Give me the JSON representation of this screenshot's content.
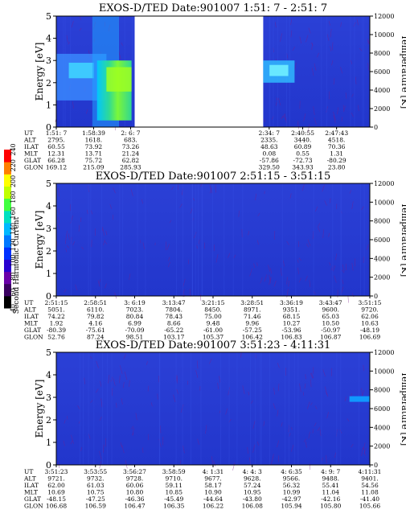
{
  "chart_data": [
    {
      "type": "heatmap",
      "title": "EXOS-D/TED   Date:901007  1:51: 7 - 2:51: 7",
      "ylabel": "Energy [eV]",
      "y2label": "Temperature [K]",
      "ylim": [
        0,
        5
      ],
      "yticks": [
        "0",
        "1",
        "2",
        "3",
        "4",
        "5"
      ],
      "y2lim": [
        0,
        12000
      ],
      "y2ticks": [
        "0",
        "2000",
        "4000",
        "6000",
        "8000",
        "10000",
        "12000"
      ],
      "row_labels": [
        "UT",
        "ALT",
        "ILAT",
        "MLT",
        "GLAT",
        "GLON"
      ],
      "columns": [
        [
          "1:51: 7",
          "2795.",
          "60.55",
          "12.31",
          "66.28",
          "169.12"
        ],
        [
          "1:58:39",
          "1618.",
          "73.92",
          "13.71",
          "75.72",
          "215.09"
        ],
        [
          "2: 6: 7",
          "683.",
          "73.26",
          "21.24",
          "62.82",
          "285.93"
        ],
        [
          "2:34: 7",
          "2335.",
          "48.63",
          "0.08",
          "-57.86",
          "329.50"
        ],
        [
          "2:40:55",
          "3440.",
          "60.89",
          "0.55",
          "-72.73",
          "343.93"
        ],
        [
          "2:47:43",
          "4518.",
          "70.36",
          "1.31",
          "-80.29",
          "23.80"
        ]
      ],
      "column_x": [
        0,
        0.119,
        0.237,
        0.679,
        0.786,
        0.894
      ],
      "data_gap": [
        0.25,
        0.66
      ],
      "notes": "Green/yellow enhancement 1.5-3 eV near 2:06; cyan band near 2.5 eV after gap."
    },
    {
      "type": "heatmap",
      "title": "EXOS-D/TED   Date:901007  2:51:15 - 3:51:15",
      "ylabel": "Energy [eV]",
      "y2label": "Temperature [K]",
      "ylim": [
        0,
        5
      ],
      "yticks": [
        "0",
        "1",
        "2",
        "3",
        "4",
        "5"
      ],
      "y2lim": [
        0,
        12000
      ],
      "y2ticks": [
        "0",
        "2000",
        "4000",
        "6000",
        "8000",
        "10000",
        "12000"
      ],
      "row_labels": [
        "UT",
        "ALT",
        "ILAT",
        "MLT",
        "GLAT",
        "GLON"
      ],
      "columns": [
        [
          "2:51:15",
          "5051.",
          "74.22",
          "1.92",
          "-80.39",
          "52.76"
        ],
        [
          "2:58:51",
          "6110.",
          "79.82",
          "4.16",
          "-75.61",
          "87.24"
        ],
        [
          "3: 6:19",
          "7023.",
          "80.84",
          "6.99",
          "-70.09",
          "98.51"
        ],
        [
          "3:13:47",
          "7804.",
          "78.43",
          "8.66",
          "-65.22",
          "103.17"
        ],
        [
          "3:21:15",
          "8450.",
          "75.00",
          "9.48",
          "-61.00",
          "105.37"
        ],
        [
          "3:28:51",
          "8971.",
          "71.46",
          "9.96",
          "-57.25",
          "106.42"
        ],
        [
          "3:36:19",
          "9351.",
          "68.15",
          "10.27",
          "-53.96",
          "106.83"
        ],
        [
          "3:43:47",
          "9600.",
          "65.03",
          "10.50",
          "-50.97",
          "106.87"
        ],
        [
          "3:51:15",
          "9720.",
          "62.06",
          "10.63",
          "-48.19",
          "106.69"
        ]
      ],
      "column_x": [
        0,
        0.125,
        0.25,
        0.375,
        0.5,
        0.625,
        0.75,
        0.875,
        1.0
      ]
    },
    {
      "type": "heatmap",
      "title": "EXOS-D/TED   Date:901007  3:51:23 - 4:11:31",
      "ylabel": "Energy [eV]",
      "y2label": "Temperature [K]",
      "ylim": [
        0,
        5
      ],
      "yticks": [
        "0",
        "1",
        "2",
        "3",
        "4",
        "5"
      ],
      "y2lim": [
        0,
        12000
      ],
      "y2ticks": [
        "0",
        "2000",
        "4000",
        "6000",
        "8000",
        "10000",
        "12000"
      ],
      "row_labels": [
        "UT",
        "ALT",
        "ILAT",
        "MLT",
        "GLAT",
        "GLON"
      ],
      "columns": [
        [
          "3:51:23",
          "9721.",
          "62.00",
          "10.69",
          "-48.15",
          "106.68"
        ],
        [
          "3:53:55",
          "9732.",
          "61.03",
          "10.75",
          "-47.25",
          "106.59"
        ],
        [
          "3:56:27",
          "9728.",
          "60.06",
          "10.80",
          "-46.36",
          "106.47"
        ],
        [
          "3:58:59",
          "9710.",
          "59.11",
          "10.85",
          "-45.49",
          "106.35"
        ],
        [
          "4: 1:31",
          "9677.",
          "58.17",
          "10.90",
          "-44.64",
          "106.22"
        ],
        [
          "4: 4: 3",
          "9628.",
          "57.24",
          "10.95",
          "-43.80",
          "106.08"
        ],
        [
          "4: 6:35",
          "9566.",
          "56.32",
          "10.99",
          "-42.97",
          "105.94"
        ],
        [
          "4: 9: 7",
          "9488.",
          "55.41",
          "11.04",
          "-42.16",
          "105.80"
        ],
        [
          "4:11:31",
          "9401.",
          "54.56",
          "11.08",
          "-41.40",
          "105.66"
        ]
      ],
      "column_x": [
        0,
        0.125,
        0.25,
        0.375,
        0.5,
        0.625,
        0.75,
        0.875,
        1.0
      ]
    }
  ],
  "colorbar": {
    "label": "Second Harmonic Current",
    "ticks": [
      "40",
      "60",
      "80",
      "100",
      "120",
      "140",
      "160",
      "180",
      "200",
      "220",
      "240"
    ],
    "colors": [
      "#000000",
      "#3a0060",
      "#6a00a8",
      "#2800d0",
      "#0030ff",
      "#0078ff",
      "#00b8ff",
      "#00e0c0",
      "#40ff40",
      "#c0ff00",
      "#ffff00",
      "#ff8000",
      "#ff0000"
    ]
  }
}
